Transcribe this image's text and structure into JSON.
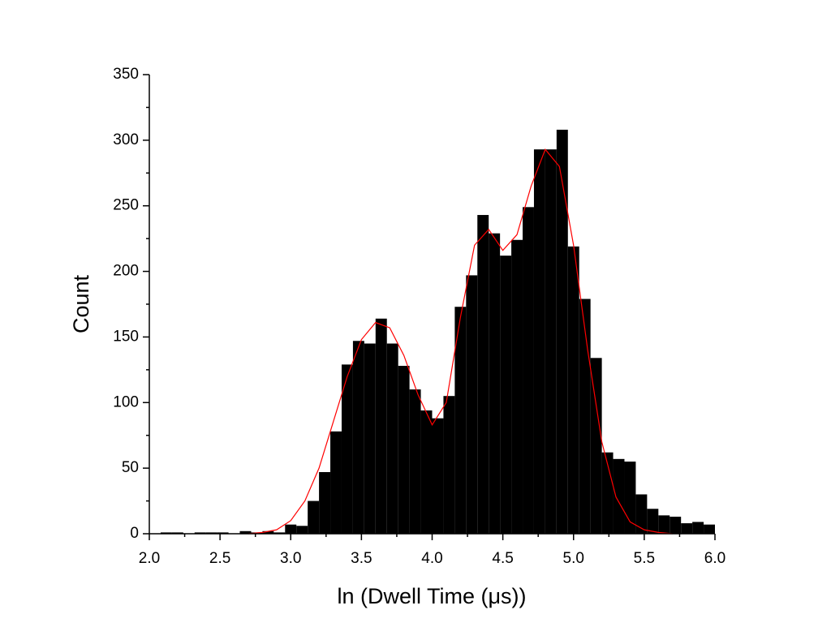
{
  "chart_data": {
    "type": "histogram",
    "bins": [
      2,
      2.08,
      2.16,
      2.24,
      2.32,
      2.4,
      2.48,
      2.56,
      2.64,
      2.72,
      2.8,
      2.88,
      2.96,
      3.04,
      3.12,
      3.2,
      3.28,
      3.36,
      3.44,
      3.52,
      3.6,
      3.68,
      3.76,
      3.84,
      3.92,
      4,
      4.08,
      4.16,
      4.24,
      4.32,
      4.4,
      4.48,
      4.56,
      4.64,
      4.72,
      4.8,
      4.88,
      4.96,
      5.04,
      5.12,
      5.2,
      5.28,
      5.36,
      5.44,
      5.52,
      5.6,
      5.68,
      5.76,
      5.84,
      5.92,
      6
    ],
    "values": [
      0,
      1,
      1,
      0,
      1,
      1,
      1,
      0,
      2,
      1,
      2,
      1,
      7,
      6,
      25,
      47,
      78,
      129,
      147,
      145,
      164,
      145,
      128,
      110,
      94,
      88,
      105,
      173,
      197,
      243,
      229,
      212,
      224,
      249,
      293,
      293,
      308,
      219,
      179,
      134,
      62,
      57,
      55,
      30,
      19,
      14,
      13,
      8,
      9,
      7
    ],
    "color": "#000000",
    "fit": {
      "color": "#ff0000",
      "x": [
        2.7,
        2.8,
        2.9,
        3.0,
        3.1,
        3.2,
        3.3,
        3.4,
        3.5,
        3.6,
        3.7,
        3.8,
        3.9,
        4.0,
        4.1,
        4.2,
        4.3,
        4.4,
        4.5,
        4.6,
        4.7,
        4.8,
        4.9,
        5.0,
        5.1,
        5.2,
        5.3,
        5.4,
        5.5,
        5.6,
        5.7
      ],
      "y": [
        0,
        1,
        3,
        10,
        25,
        50,
        85,
        120,
        148,
        161,
        157,
        136,
        106,
        83,
        100,
        165,
        220,
        232,
        216,
        228,
        265,
        293,
        280,
        220,
        140,
        70,
        28,
        9,
        3,
        1,
        0
      ]
    },
    "xlabel": "ln (Dwell Time (μs))",
    "ylabel": "Count",
    "xlim": [
      2,
      6
    ],
    "xticks": [
      {
        "value": 2,
        "label": "2.0"
      },
      {
        "value": 2.5,
        "label": "2.5"
      },
      {
        "value": 3,
        "label": "3.0"
      },
      {
        "value": 3.5,
        "label": "3.5"
      },
      {
        "value": 4,
        "label": "4.0"
      },
      {
        "value": 4.5,
        "label": "4.5"
      },
      {
        "value": 5,
        "label": "5.0"
      },
      {
        "value": 5.5,
        "label": "5.5"
      },
      {
        "value": 6,
        "label": "6.0"
      }
    ],
    "ylim": [
      0,
      350
    ],
    "yticks": [
      0,
      50,
      100,
      150,
      200,
      250,
      300,
      350
    ]
  }
}
